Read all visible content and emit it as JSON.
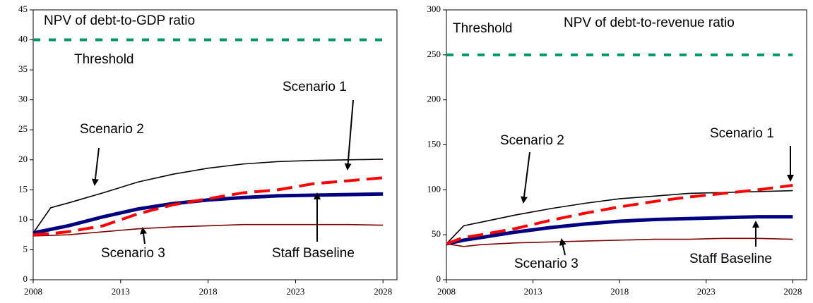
{
  "chart_data": [
    {
      "type": "line",
      "title": "NPV of debt-to-GDP ratio",
      "x": [
        2008,
        2009,
        2010,
        2012,
        2014,
        2016,
        2018,
        2020,
        2022,
        2024,
        2026,
        2028
      ],
      "xlim": [
        2008,
        2028.8
      ],
      "xticks": [
        2008,
        2013,
        2018,
        2023,
        2028
      ],
      "ylim": [
        0,
        45
      ],
      "yticks": [
        0,
        5,
        10,
        15,
        20,
        25,
        30,
        35,
        40,
        45
      ],
      "series": [
        {
          "name": "Threshold",
          "color": "#009966",
          "linestyle": "dotted",
          "values": [
            40,
            40,
            40,
            40,
            40,
            40,
            40,
            40,
            40,
            40,
            40,
            40
          ]
        },
        {
          "name": "Scenario 2",
          "color": "#000000",
          "linestyle": "solid",
          "values": [
            7.8,
            12,
            12.8,
            14.5,
            16.3,
            17.6,
            18.6,
            19.3,
            19.7,
            19.9,
            20,
            20.1
          ]
        },
        {
          "name": "Scenario 3",
          "color": "#800000",
          "linestyle": "solid",
          "values": [
            7.3,
            7.4,
            7.5,
            8,
            8.5,
            8.8,
            9,
            9.2,
            9.2,
            9.2,
            9.2,
            9.1
          ]
        },
        {
          "name": "Staff Baseline",
          "color": "#000080",
          "linestyle": "solid",
          "values": [
            7.8,
            8.4,
            9,
            10.5,
            11.8,
            12.7,
            13.3,
            13.7,
            14,
            14.1,
            14.2,
            14.3
          ]
        },
        {
          "name": "Scenario 1",
          "color": "#ff0000",
          "linestyle": "dashed",
          "values": [
            7.5,
            7.7,
            8,
            9,
            11,
            12.5,
            13.5,
            14.5,
            15,
            16,
            16.5,
            17
          ]
        }
      ]
    },
    {
      "type": "line",
      "title": "NPV of debt-to-revenue ratio",
      "x": [
        2008,
        2009,
        2010,
        2012,
        2014,
        2016,
        2018,
        2020,
        2022,
        2024,
        2026,
        2028
      ],
      "xlim": [
        2008,
        2028.8
      ],
      "xticks": [
        2008,
        2013,
        2018,
        2023,
        2028
      ],
      "ylim": [
        0,
        300
      ],
      "yticks": [
        0,
        50,
        100,
        150,
        200,
        250,
        300
      ],
      "series": [
        {
          "name": "Threshold",
          "color": "#009966",
          "linestyle": "dotted",
          "values": [
            250,
            250,
            250,
            250,
            250,
            250,
            250,
            250,
            250,
            250,
            250,
            250
          ]
        },
        {
          "name": "Scenario 2",
          "color": "#000000",
          "linestyle": "solid",
          "values": [
            40,
            60,
            64,
            72,
            79,
            85,
            90,
            93,
            96,
            97,
            98,
            99
          ]
        },
        {
          "name": "Scenario 3",
          "color": "#800000",
          "linestyle": "solid",
          "values": [
            40,
            37,
            39,
            41,
            42,
            43,
            44,
            45,
            45,
            46,
            46,
            45
          ]
        },
        {
          "name": "Staff Baseline",
          "color": "#000080",
          "linestyle": "solid",
          "values": [
            40,
            44,
            47,
            53,
            58,
            62,
            65,
            67,
            68,
            69,
            70,
            70
          ]
        },
        {
          "name": "Scenario 1",
          "color": "#ff0000",
          "linestyle": "dashed",
          "values": [
            40,
            47,
            50,
            57,
            66,
            74,
            81,
            87,
            92,
            96,
            100,
            105
          ]
        }
      ]
    }
  ]
}
